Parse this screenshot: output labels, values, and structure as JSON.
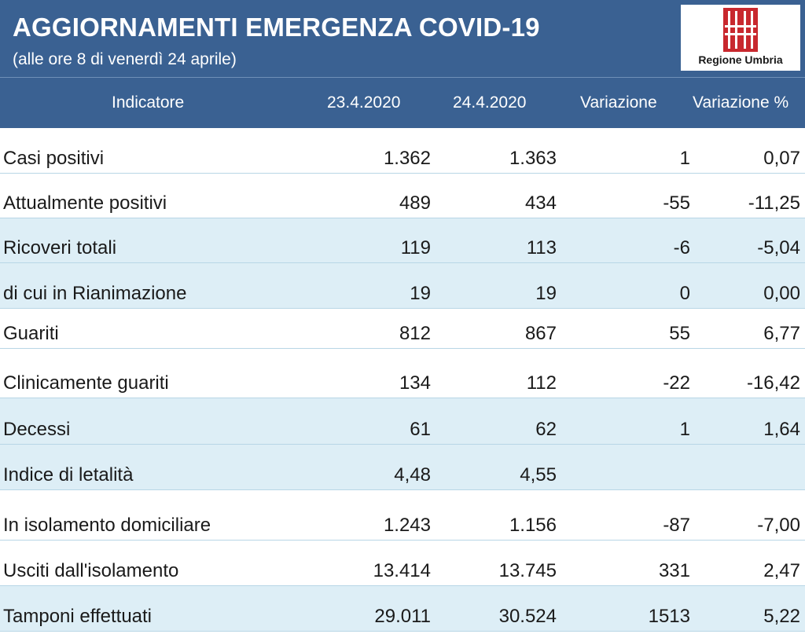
{
  "header": {
    "title": "AGGIORNAMENTI EMERGENZA COVID-19",
    "subtitle": "(alle ore 8 di venerdì 24 aprile)",
    "logo_text": "Regione Umbria",
    "colors": {
      "header_bg": "#3a6192",
      "row_shade": "#ddeef6",
      "logo_red": "#c8282e"
    }
  },
  "columns": {
    "indicator": "Indicatore",
    "date1": "23.4.2020",
    "date2": "24.4.2020",
    "variation": "Variazione",
    "variation_pct": "Variazione %"
  },
  "rows": [
    {
      "label": "Casi positivi",
      "d1": "1.362",
      "d2": "1.363",
      "var": "1",
      "pct": "0,07"
    },
    {
      "label": "Attualmente positivi",
      "d1": "489",
      "d2": "434",
      "var": "-55",
      "pct": "-11,25"
    },
    {
      "label": "Ricoveri totali",
      "d1": "119",
      "d2": "113",
      "var": "-6",
      "pct": "-5,04"
    },
    {
      "label": "di cui in Rianimazione",
      "d1": "19",
      "d2": "19",
      "var": "0",
      "pct": "0,00"
    },
    {
      "label": "Guariti",
      "d1": "812",
      "d2": "867",
      "var": "55",
      "pct": "6,77"
    },
    {
      "label": "Clinicamente guariti",
      "d1": "134",
      "d2": "112",
      "var": "-22",
      "pct": "-16,42"
    },
    {
      "label": "Decessi",
      "d1": "61",
      "d2": "62",
      "var": "1",
      "pct": "1,64"
    },
    {
      "label": "Indice di letalità",
      "d1": "4,48",
      "d2": "4,55",
      "var": "",
      "pct": ""
    },
    {
      "label": "In isolamento domiciliare",
      "d1": "1.243",
      "d2": "1.156",
      "var": "-87",
      "pct": "-7,00"
    },
    {
      "label": "Usciti dall'isolamento",
      "d1": "13.414",
      "d2": "13.745",
      "var": "331",
      "pct": "2,47"
    },
    {
      "label": "Tamponi effettuati",
      "d1": "29.011",
      "d2": "30.524",
      "var": "1513",
      "pct": "5,22"
    }
  ]
}
